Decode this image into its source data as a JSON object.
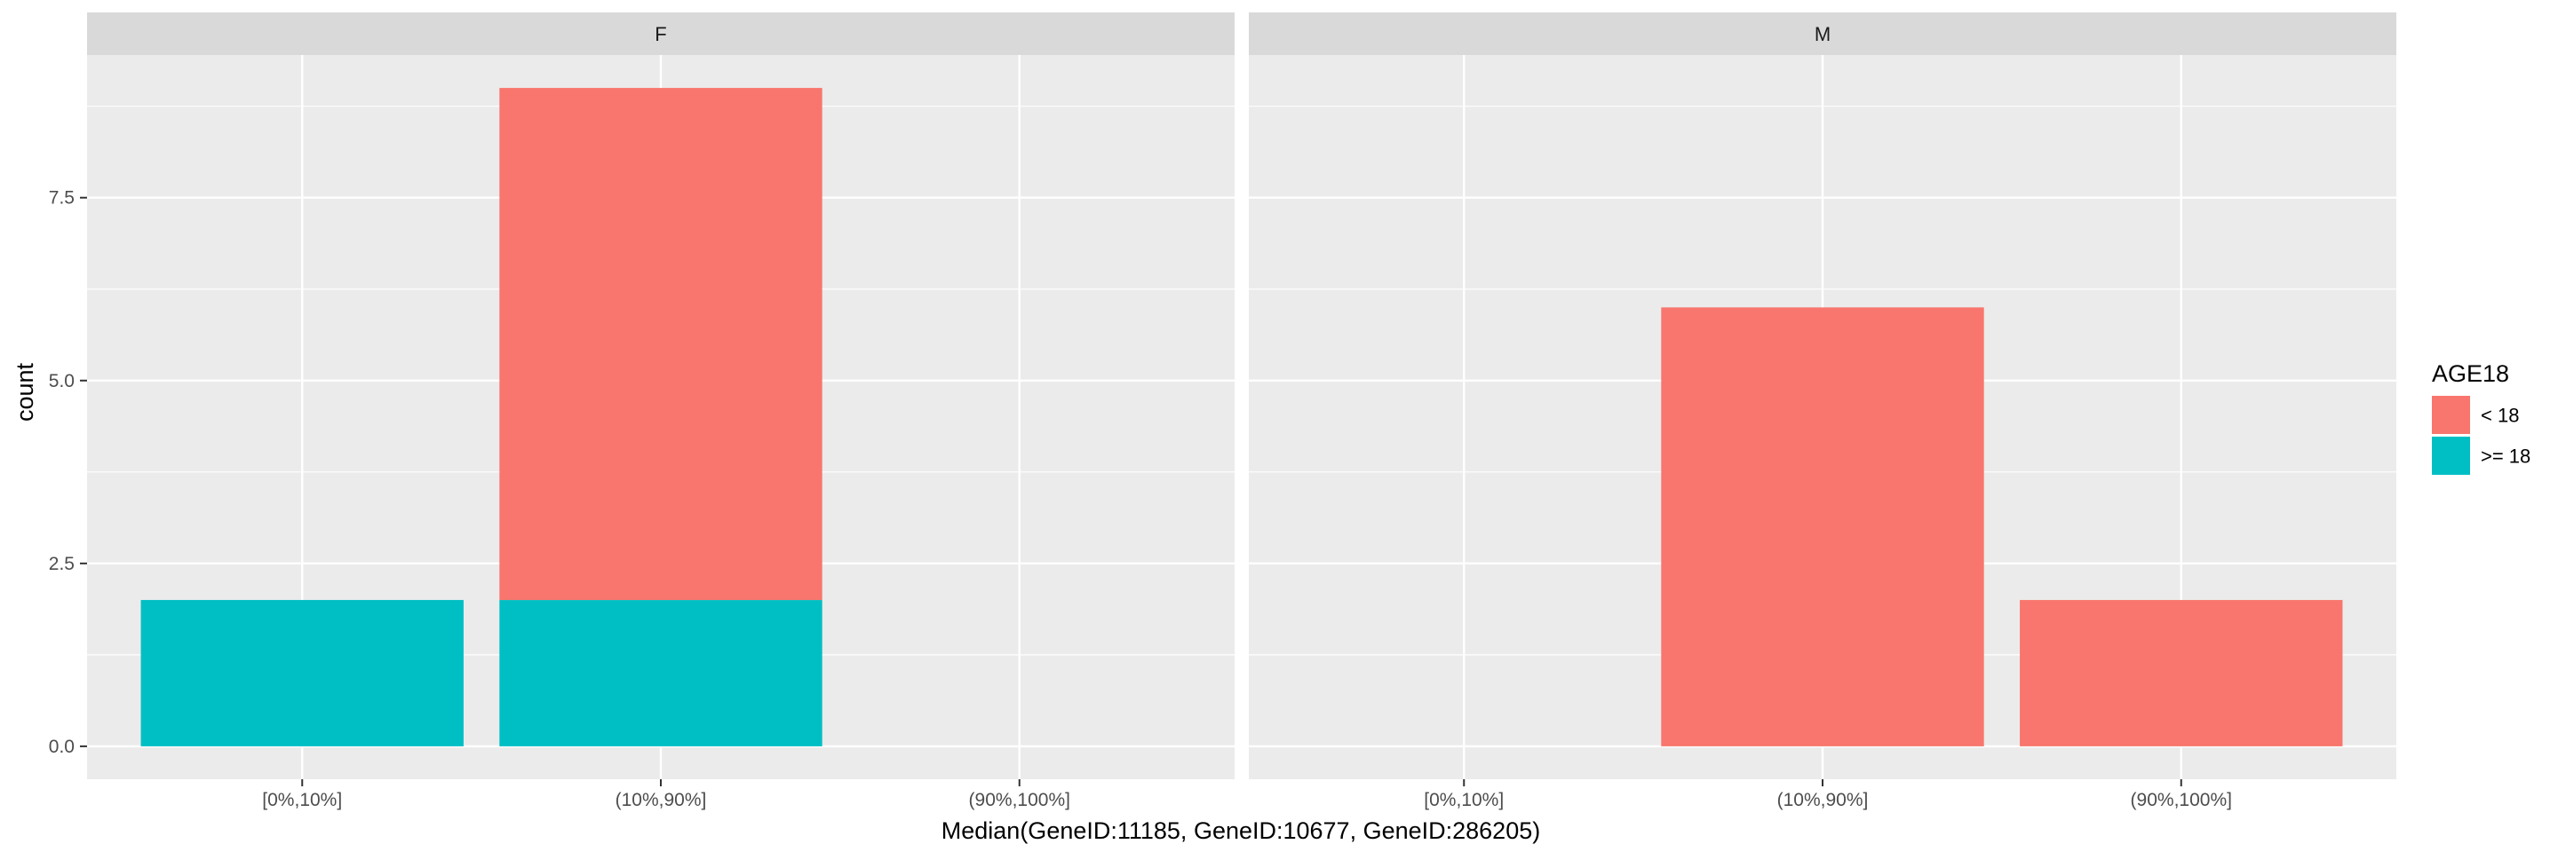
{
  "chart_data": {
    "type": "bar",
    "stacked": true,
    "facets": [
      "F",
      "M"
    ],
    "categories": [
      "[0%,10%]",
      "(10%,90%]",
      "(90%,100%]"
    ],
    "series": [
      {
        "name": "< 18",
        "color": "#F8766D",
        "values": {
          "F": [
            0,
            7,
            0
          ],
          "M": [
            0,
            6,
            2
          ]
        }
      },
      {
        "name": ">= 18",
        "color": "#00BFC4",
        "values": {
          "F": [
            2,
            2,
            0
          ],
          "M": [
            0,
            0,
            0
          ]
        }
      }
    ],
    "stack_order": [
      ">= 18",
      "< 18"
    ],
    "xlabel": "Median(GeneID:11185, GeneID:10677, GeneID:286205)",
    "ylabel": "count",
    "yticks": [
      0,
      2.5,
      5,
      7.5
    ],
    "ytick_labels": [
      "0.0",
      "2.5",
      "5.0",
      "7.5"
    ],
    "ylim": [
      -0.45,
      9.45
    ],
    "legend": {
      "title": "AGE18",
      "position": "right"
    },
    "grid": true,
    "panel_background": "#EBEBEB",
    "strip_background": "#D9D9D9"
  }
}
